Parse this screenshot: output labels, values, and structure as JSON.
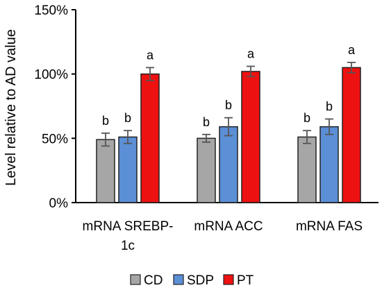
{
  "chart_data": {
    "type": "bar",
    "title": "",
    "xlabel": "",
    "ylabel": "Level relative to AD value",
    "ylim": [
      0,
      150
    ],
    "yticks": [
      0,
      50,
      100,
      150
    ],
    "ytick_labels": [
      "0%",
      "50%",
      "100%",
      "150%"
    ],
    "grid": false,
    "legend_position": "bottom",
    "categories": [
      {
        "lines": [
          "mRNA SREBP-",
          "1c"
        ]
      },
      {
        "lines": [
          "mRNA ACC"
        ]
      },
      {
        "lines": [
          "mRNA FAS"
        ]
      }
    ],
    "series": [
      {
        "name": "CD",
        "color": "#a6a6a6",
        "values": [
          49,
          50,
          51
        ],
        "errors": [
          5,
          3,
          5
        ],
        "labels": [
          "b",
          "b",
          "b"
        ]
      },
      {
        "name": "SDP",
        "color": "#5b8fd6",
        "values": [
          51,
          59,
          59
        ],
        "errors": [
          5,
          7,
          6
        ],
        "labels": [
          "b",
          "b",
          "b"
        ]
      },
      {
        "name": "PT",
        "color": "#ee1111",
        "values": [
          100,
          102,
          105
        ],
        "errors": [
          5,
          4,
          4
        ],
        "labels": [
          "a",
          "a",
          "a"
        ]
      }
    ]
  }
}
